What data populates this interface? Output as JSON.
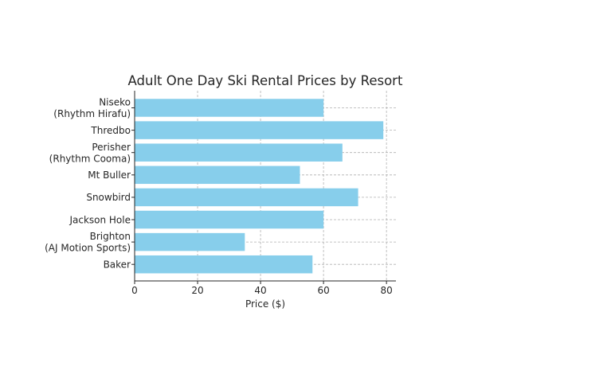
{
  "chart_data": {
    "type": "bar",
    "orientation": "horizontal",
    "title": "Adult One Day Ski Rental Prices by Resort",
    "xlabel": "Price ($)",
    "ylabel": "",
    "categories": [
      [
        "Niseko",
        "(Rhythm Hirafu)"
      ],
      [
        "Thredbo"
      ],
      [
        "Perisher",
        "(Rhythm Cooma)"
      ],
      [
        "Mt Buller"
      ],
      [
        "Snowbird"
      ],
      [
        "Jackson Hole"
      ],
      [
        "Brighton",
        "(AJ Motion Sports)"
      ],
      [
        "Baker"
      ]
    ],
    "values": [
      60,
      79,
      66,
      52.5,
      71,
      60,
      35,
      56.5
    ],
    "xlim": [
      0,
      83
    ],
    "xticks": [
      0,
      20,
      40,
      60,
      80
    ],
    "grid": true,
    "bar_color": "#87ceeb"
  }
}
